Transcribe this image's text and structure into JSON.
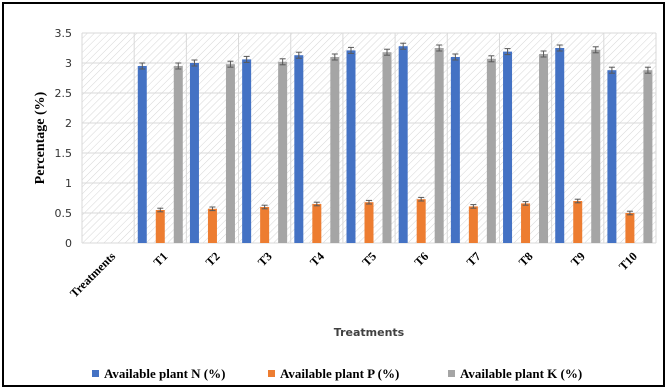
{
  "chart_data": {
    "type": "bar",
    "xlabel": "Treatments",
    "ylabel": "Percentage (%)",
    "ylim": [
      0,
      3.5
    ],
    "yticks": [
      0,
      0.5,
      1,
      1.5,
      2,
      2.5,
      3,
      3.5
    ],
    "categories": [
      "Treatments",
      "T1",
      "T2",
      "T3",
      "T4",
      "T5",
      "T6",
      "T7",
      "T8",
      "T9",
      "T10"
    ],
    "series": [
      {
        "name": "Available plant N (%)",
        "color": "#4472c4",
        "values": [
          null,
          2.95,
          3.0,
          3.06,
          3.13,
          3.21,
          3.28,
          3.1,
          3.19,
          3.25,
          2.88
        ],
        "errors": [
          null,
          0.05,
          0.05,
          0.05,
          0.05,
          0.05,
          0.05,
          0.05,
          0.05,
          0.05,
          0.05
        ]
      },
      {
        "name": "Available plant P (%)",
        "color": "#ed7d31",
        "values": [
          null,
          0.55,
          0.57,
          0.6,
          0.65,
          0.68,
          0.73,
          0.61,
          0.66,
          0.7,
          0.5
        ],
        "errors": [
          null,
          0.03,
          0.03,
          0.03,
          0.03,
          0.03,
          0.03,
          0.03,
          0.03,
          0.03,
          0.03
        ]
      },
      {
        "name": "Available plant K (%)",
        "color": "#a5a5a5",
        "values": [
          null,
          2.95,
          2.98,
          3.02,
          3.1,
          3.18,
          3.25,
          3.07,
          3.15,
          3.22,
          2.88
        ],
        "errors": [
          null,
          0.05,
          0.05,
          0.05,
          0.05,
          0.05,
          0.05,
          0.05,
          0.05,
          0.05,
          0.05
        ]
      }
    ],
    "grid": true,
    "legend": "bottom"
  }
}
